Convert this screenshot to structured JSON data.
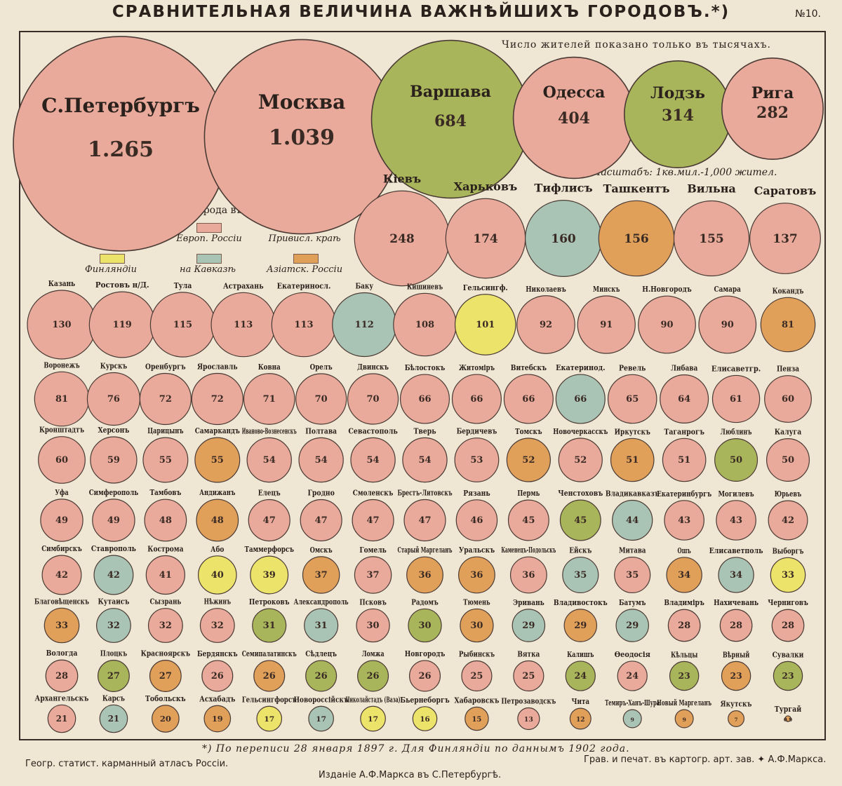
{
  "header": {
    "title": "СРАВНИТЕЛЬНАЯ ВЕЛИЧИНА ВАЖНѢЙШИХЪ ГОРОДОВЪ.*)",
    "plate_number": "№10.",
    "subtitle": "Число жителей показано только въ тысячахъ.",
    "scale_note": "Масштабъ: 1кв.мил.-1,000 жител."
  },
  "legend": {
    "heading": "Города въ",
    "items": [
      {
        "label": "Европ. Россіи",
        "region": "europe",
        "color": "#e9aa9b"
      },
      {
        "label": "Привисл. краѣ",
        "region": "vistula",
        "color": "#a9b55a"
      },
      {
        "label": "Финляндіи",
        "region": "finland",
        "color": "#ece36a"
      },
      {
        "label": "на Кавказѣ",
        "region": "caucasus",
        "color": "#a9c4b5"
      },
      {
        "label": "Азіатск. Россіи",
        "region": "asia",
        "color": "#e0a05a"
      }
    ]
  },
  "colors": {
    "europe": "#e9aa9b",
    "vistula": "#a9b55a",
    "finland": "#ece36a",
    "caucasus": "#a9c4b5",
    "asia": "#e0a05a",
    "outline": "#4a3a34"
  },
  "chart_data": {
    "type": "bubble",
    "title": "СРАВНИТЕЛЬНАЯ ВЕЛИЧИНА ВАЖНѢЙШИХЪ ГОРОДОВЪ.*)",
    "unit": "тысячъ жителей",
    "rows": [
      [
        {
          "name": "С.Петербургъ",
          "label": "1.265",
          "value": 1265,
          "region": "europe"
        },
        {
          "name": "Москва",
          "label": "1.039",
          "value": 1039,
          "region": "europe"
        },
        {
          "name": "Варшава",
          "label": "684",
          "value": 684,
          "region": "vistula"
        },
        {
          "name": "Одесса",
          "label": "404",
          "value": 404,
          "region": "europe"
        },
        {
          "name": "Лодзь",
          "label": "314",
          "value": 314,
          "region": "vistula"
        },
        {
          "name": "Рига",
          "label": "282",
          "value": 282,
          "region": "europe"
        }
      ],
      [
        {
          "name": "Кіевъ",
          "label": "248",
          "value": 248,
          "region": "europe"
        },
        {
          "name": "Харьковъ",
          "label": "174",
          "value": 174,
          "region": "europe"
        },
        {
          "name": "Тифлисъ",
          "label": "160",
          "value": 160,
          "region": "caucasus"
        },
        {
          "name": "Ташкентъ",
          "label": "156",
          "value": 156,
          "region": "asia"
        },
        {
          "name": "Вильна",
          "label": "155",
          "value": 155,
          "region": "europe"
        },
        {
          "name": "Саратовъ",
          "label": "137",
          "value": 137,
          "region": "europe"
        }
      ],
      [
        {
          "name": "Казань",
          "label": "130",
          "value": 130,
          "region": "europe"
        },
        {
          "name": "Ростовъ н/Д.",
          "label": "119",
          "value": 119,
          "region": "europe"
        },
        {
          "name": "Тула",
          "label": "115",
          "value": 115,
          "region": "europe"
        },
        {
          "name": "Астрахань",
          "label": "113",
          "value": 113,
          "region": "europe"
        },
        {
          "name": "Екатериносл.",
          "label": "113",
          "value": 113,
          "region": "europe"
        },
        {
          "name": "Баку",
          "label": "112",
          "value": 112,
          "region": "caucasus"
        },
        {
          "name": "Кишиневъ",
          "label": "108",
          "value": 108,
          "region": "europe"
        },
        {
          "name": "Гельсингф.",
          "label": "101",
          "value": 101,
          "region": "finland"
        },
        {
          "name": "Николаевъ",
          "label": "92",
          "value": 92,
          "region": "europe"
        },
        {
          "name": "Минскъ",
          "label": "91",
          "value": 91,
          "region": "europe"
        },
        {
          "name": "Н.Новгородъ",
          "label": "90",
          "value": 90,
          "region": "europe"
        },
        {
          "name": "Самара",
          "label": "90",
          "value": 90,
          "region": "europe"
        },
        {
          "name": "Кокандъ",
          "label": "81",
          "value": 81,
          "region": "asia"
        }
      ],
      [
        {
          "name": "Воронежъ",
          "label": "81",
          "value": 81,
          "region": "europe"
        },
        {
          "name": "Курскъ",
          "label": "76",
          "value": 76,
          "region": "europe"
        },
        {
          "name": "Оренбургъ",
          "label": "72",
          "value": 72,
          "region": "europe"
        },
        {
          "name": "Ярославль",
          "label": "72",
          "value": 72,
          "region": "europe"
        },
        {
          "name": "Ковна",
          "label": "71",
          "value": 71,
          "region": "europe"
        },
        {
          "name": "Орелъ",
          "label": "70",
          "value": 70,
          "region": "europe"
        },
        {
          "name": "Двинскъ",
          "label": "70",
          "value": 70,
          "region": "europe"
        },
        {
          "name": "Бѣлостокъ",
          "label": "66",
          "value": 66,
          "region": "europe"
        },
        {
          "name": "Житоміръ",
          "label": "66",
          "value": 66,
          "region": "europe"
        },
        {
          "name": "Витебскъ",
          "label": "66",
          "value": 66,
          "region": "europe"
        },
        {
          "name": "Екатеринод.",
          "label": "66",
          "value": 66,
          "region": "caucasus"
        },
        {
          "name": "Ревель",
          "label": "65",
          "value": 65,
          "region": "europe"
        },
        {
          "name": "Либава",
          "label": "64",
          "value": 64,
          "region": "europe"
        },
        {
          "name": "Елисаветгр.",
          "label": "61",
          "value": 61,
          "region": "europe"
        },
        {
          "name": "Пенза",
          "label": "60",
          "value": 60,
          "region": "europe"
        }
      ],
      [
        {
          "name": "Кронштадтъ",
          "label": "60",
          "value": 60,
          "region": "europe"
        },
        {
          "name": "Херсонъ",
          "label": "59",
          "value": 59,
          "region": "europe"
        },
        {
          "name": "Царицынъ",
          "label": "55",
          "value": 55,
          "region": "europe"
        },
        {
          "name": "Самаркандъ",
          "label": "55",
          "value": 55,
          "region": "asia"
        },
        {
          "name": "Иваново-Вознесенскъ",
          "label": "54",
          "value": 54,
          "region": "europe"
        },
        {
          "name": "Полтава",
          "label": "54",
          "value": 54,
          "region": "europe"
        },
        {
          "name": "Севастополь",
          "label": "54",
          "value": 54,
          "region": "europe"
        },
        {
          "name": "Тверь",
          "label": "54",
          "value": 54,
          "region": "europe"
        },
        {
          "name": "Бердичевъ",
          "label": "53",
          "value": 53,
          "region": "europe"
        },
        {
          "name": "Томскъ",
          "label": "52",
          "value": 52,
          "region": "asia"
        },
        {
          "name": "Новочеркасскъ",
          "label": "52",
          "value": 52,
          "region": "europe"
        },
        {
          "name": "Иркутскъ",
          "label": "51",
          "value": 51,
          "region": "asia"
        },
        {
          "name": "Таганрогъ",
          "label": "51",
          "value": 51,
          "region": "europe"
        },
        {
          "name": "Люблинъ",
          "label": "50",
          "value": 50,
          "region": "vistula"
        },
        {
          "name": "Калуга",
          "label": "50",
          "value": 50,
          "region": "europe"
        }
      ],
      [
        {
          "name": "Уфа",
          "label": "49",
          "value": 49,
          "region": "europe"
        },
        {
          "name": "Симферополь",
          "label": "49",
          "value": 49,
          "region": "europe"
        },
        {
          "name": "Тамбовъ",
          "label": "48",
          "value": 48,
          "region": "europe"
        },
        {
          "name": "Андижанъ",
          "label": "48",
          "value": 48,
          "region": "asia"
        },
        {
          "name": "Елецъ",
          "label": "47",
          "value": 47,
          "region": "europe"
        },
        {
          "name": "Гродно",
          "label": "47",
          "value": 47,
          "region": "europe"
        },
        {
          "name": "Смоленскъ",
          "label": "47",
          "value": 47,
          "region": "europe"
        },
        {
          "name": "Брестъ-Литовскъ",
          "label": "47",
          "value": 47,
          "region": "europe"
        },
        {
          "name": "Рязань",
          "label": "46",
          "value": 46,
          "region": "europe"
        },
        {
          "name": "Пермь",
          "label": "45",
          "value": 45,
          "region": "europe"
        },
        {
          "name": "Ченстоховъ",
          "label": "45",
          "value": 45,
          "region": "vistula"
        },
        {
          "name": "Владикавказъ",
          "label": "44",
          "value": 44,
          "region": "caucasus"
        },
        {
          "name": "Екатеринбургъ",
          "label": "43",
          "value": 43,
          "region": "europe"
        },
        {
          "name": "Могилевъ",
          "label": "43",
          "value": 43,
          "region": "europe"
        },
        {
          "name": "Юрьевъ",
          "label": "42",
          "value": 42,
          "region": "europe"
        }
      ],
      [
        {
          "name": "Симбирскъ",
          "label": "42",
          "value": 42,
          "region": "europe"
        },
        {
          "name": "Ставрополь",
          "label": "42",
          "value": 42,
          "region": "caucasus"
        },
        {
          "name": "Кострома",
          "label": "41",
          "value": 41,
          "region": "europe"
        },
        {
          "name": "Або",
          "label": "40",
          "value": 40,
          "region": "finland"
        },
        {
          "name": "Таммерфорсъ",
          "label": "39",
          "value": 39,
          "region": "finland"
        },
        {
          "name": "Омскъ",
          "label": "37",
          "value": 37,
          "region": "asia"
        },
        {
          "name": "Гомель",
          "label": "37",
          "value": 37,
          "region": "europe"
        },
        {
          "name": "Старый Маргеланъ",
          "label": "36",
          "value": 36,
          "region": "asia"
        },
        {
          "name": "Уральскъ",
          "label": "36",
          "value": 36,
          "region": "asia"
        },
        {
          "name": "Каменецъ-Подольскъ",
          "label": "36",
          "value": 36,
          "region": "europe"
        },
        {
          "name": "Ейскъ",
          "label": "35",
          "value": 35,
          "region": "caucasus"
        },
        {
          "name": "Митава",
          "label": "35",
          "value": 35,
          "region": "europe"
        },
        {
          "name": "Ошъ",
          "label": "34",
          "value": 34,
          "region": "asia"
        },
        {
          "name": "Елисаветполь",
          "label": "34",
          "value": 34,
          "region": "caucasus"
        },
        {
          "name": "Выборгъ",
          "label": "33",
          "value": 33,
          "region": "finland"
        }
      ],
      [
        {
          "name": "Благовѣщенскъ",
          "label": "33",
          "value": 33,
          "region": "asia"
        },
        {
          "name": "Кутаисъ",
          "label": "32",
          "value": 32,
          "region": "caucasus"
        },
        {
          "name": "Сызрань",
          "label": "32",
          "value": 32,
          "region": "europe"
        },
        {
          "name": "Нѣжинъ",
          "label": "32",
          "value": 32,
          "region": "europe"
        },
        {
          "name": "Петроковъ",
          "label": "31",
          "value": 31,
          "region": "vistula"
        },
        {
          "name": "Александрополь",
          "label": "31",
          "value": 31,
          "region": "caucasus"
        },
        {
          "name": "Псковъ",
          "label": "30",
          "value": 30,
          "region": "europe"
        },
        {
          "name": "Радомъ",
          "label": "30",
          "value": 30,
          "region": "vistula"
        },
        {
          "name": "Тюмень",
          "label": "30",
          "value": 30,
          "region": "asia"
        },
        {
          "name": "Эривань",
          "label": "29",
          "value": 29,
          "region": "caucasus"
        },
        {
          "name": "Владивостокъ",
          "label": "29",
          "value": 29,
          "region": "asia"
        },
        {
          "name": "Батумъ",
          "label": "29",
          "value": 29,
          "region": "caucasus"
        },
        {
          "name": "Владиміръ",
          "label": "28",
          "value": 28,
          "region": "europe"
        },
        {
          "name": "Нахичевань",
          "label": "28",
          "value": 28,
          "region": "europe"
        },
        {
          "name": "Черниговъ",
          "label": "28",
          "value": 28,
          "region": "europe"
        }
      ],
      [
        {
          "name": "Вологда",
          "label": "28",
          "value": 28,
          "region": "europe"
        },
        {
          "name": "Плоцкъ",
          "label": "27",
          "value": 27,
          "region": "vistula"
        },
        {
          "name": "Красноярскъ",
          "label": "27",
          "value": 27,
          "region": "asia"
        },
        {
          "name": "Бердянскъ",
          "label": "26",
          "value": 26,
          "region": "europe"
        },
        {
          "name": "Семипалатинскъ",
          "label": "26",
          "value": 26,
          "region": "asia"
        },
        {
          "name": "Сѣдлецъ",
          "label": "26",
          "value": 26,
          "region": "vistula"
        },
        {
          "name": "Ломжа",
          "label": "26",
          "value": 26,
          "region": "vistula"
        },
        {
          "name": "Новгородъ",
          "label": "26",
          "value": 26,
          "region": "europe"
        },
        {
          "name": "Рыбинскъ",
          "label": "25",
          "value": 25,
          "region": "europe"
        },
        {
          "name": "Вятка",
          "label": "25",
          "value": 25,
          "region": "europe"
        },
        {
          "name": "Калишъ",
          "label": "24",
          "value": 24,
          "region": "vistula"
        },
        {
          "name": "Ѳеодосія",
          "label": "24",
          "value": 24,
          "region": "europe"
        },
        {
          "name": "Кѣльцы",
          "label": "23",
          "value": 23,
          "region": "vistula"
        },
        {
          "name": "Вѣрный",
          "label": "23",
          "value": 23,
          "region": "asia"
        },
        {
          "name": "Сувалки",
          "label": "23",
          "value": 23,
          "region": "vistula"
        }
      ],
      [
        {
          "name": "Архангельскъ",
          "label": "21",
          "value": 21,
          "region": "europe"
        },
        {
          "name": "Карсъ",
          "label": "21",
          "value": 21,
          "region": "caucasus"
        },
        {
          "name": "Тобольскъ",
          "label": "20",
          "value": 20,
          "region": "asia"
        },
        {
          "name": "Асхабадъ",
          "label": "19",
          "value": 19,
          "region": "asia"
        },
        {
          "name": "Гельсингфорсъ",
          "label": "17",
          "value": 17,
          "region": "finland"
        },
        {
          "name": "Новороссійскъ",
          "label": "17",
          "value": 17,
          "region": "caucasus"
        },
        {
          "name": "Николайстадъ (Ваза)",
          "label": "17",
          "value": 17,
          "region": "finland"
        },
        {
          "name": "Бьернеборгъ",
          "label": "16",
          "value": 16,
          "region": "finland"
        },
        {
          "name": "Хабаровскъ",
          "label": "15",
          "value": 15,
          "region": "asia"
        },
        {
          "name": "Петрозаводскъ",
          "label": "13",
          "value": 13,
          "region": "europe"
        },
        {
          "name": "Чита",
          "label": "12",
          "value": 12,
          "region": "asia"
        },
        {
          "name": "Темиръ-Ханъ-Шура",
          "label": "9",
          "value": 9,
          "region": "caucasus"
        },
        {
          "name": "Новый Маргеланъ",
          "label": "9",
          "value": 9,
          "region": "asia"
        },
        {
          "name": "Якутскъ",
          "label": "7",
          "value": 7,
          "region": "asia"
        },
        {
          "name": "Тургай",
          "label": "0.9",
          "value": 0.9,
          "region": "asia"
        }
      ]
    ]
  },
  "footer": {
    "census_note": "*) По переписи 28 января 1897 г. Для Финляндіи по даннымъ 1902 года.",
    "atlas": "Геогр. статист. карманный атласъ Россіи.",
    "engraver": "Грав. и печат. въ картогр. арт. зав. ✦ А.Ф.Маркса.",
    "publisher": "Изданіе А.Ф.Маркса въ С.Петербургѣ."
  }
}
